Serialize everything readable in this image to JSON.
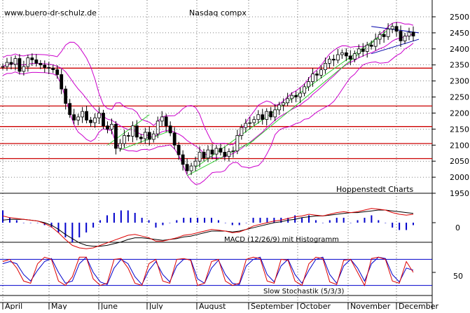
{
  "chart_data": {
    "type": "candlestick",
    "title": "Nasdaq compx",
    "watermark": "www.buero-dr-schulz.de",
    "source_label": "Hoppenstedt Charts",
    "price_axis": {
      "min": 1950,
      "max": 2500,
      "ticks": [
        1950,
        2000,
        2050,
        2100,
        2150,
        2200,
        2250,
        2300,
        2350,
        2400,
        2450,
        2500
      ]
    },
    "months": [
      "April",
      "May",
      "June",
      "July",
      "August",
      "September",
      "October",
      "November",
      "December"
    ],
    "horizontal_levels": [
      2340,
      2222,
      2158,
      2105,
      2058
    ],
    "close_series": [
      2345,
      2358,
      2352,
      2370,
      2330,
      2345,
      2372,
      2366,
      2355,
      2350,
      2342,
      2340,
      2335,
      2320,
      2275,
      2230,
      2195,
      2178,
      2188,
      2205,
      2178,
      2170,
      2185,
      2200,
      2160,
      2150,
      2165,
      2090,
      2105,
      2130,
      2128,
      2160,
      2125,
      2120,
      2140,
      2118,
      2135,
      2175,
      2188,
      2160,
      2138,
      2100,
      2070,
      2040,
      2020,
      2035,
      2050,
      2078,
      2060,
      2085,
      2072,
      2090,
      2078,
      2065,
      2080,
      2082,
      2130,
      2155,
      2168,
      2170,
      2180,
      2195,
      2180,
      2205,
      2188,
      2210,
      2225,
      2232,
      2245,
      2255,
      2250,
      2262,
      2282,
      2298,
      2322,
      2318,
      2335,
      2355,
      2368,
      2365,
      2382,
      2388,
      2378,
      2368,
      2385,
      2400,
      2392,
      2412,
      2408,
      2430,
      2445,
      2438,
      2462,
      2470,
      2455,
      2425,
      2440,
      2452,
      2440
    ],
    "macd": {
      "label": "MACD (12/26/9) mit Histogramm",
      "zero_tick": "0",
      "macd_line": [
        8,
        6,
        5,
        4,
        3,
        2,
        -1,
        -5,
        -12,
        -20,
        -27,
        -30,
        -31,
        -30,
        -27,
        -24,
        -21,
        -18,
        -15,
        -14,
        -16,
        -18,
        -22,
        -22,
        -20,
        -18,
        -15,
        -14,
        -12,
        -10,
        -8,
        -9,
        -10,
        -12,
        -11,
        -8,
        -4,
        -2,
        0,
        2,
        3,
        5,
        7,
        8,
        10,
        9,
        8,
        10,
        12,
        13,
        12,
        13,
        15,
        17,
        16,
        15,
        12,
        10,
        9,
        10
      ],
      "signal_line": [
        3,
        4,
        4,
        4,
        3,
        2,
        0,
        -3,
        -8,
        -14,
        -19,
        -24,
        -27,
        -28,
        -28,
        -27,
        -25,
        -23,
        -20,
        -18,
        -18,
        -19,
        -20,
        -21,
        -20,
        -19,
        -17,
        -16,
        -14,
        -12,
        -10,
        -10,
        -10,
        -11,
        -10,
        -8,
        -6,
        -4,
        -2,
        0,
        1,
        3,
        4,
        6,
        7,
        8,
        8,
        9,
        10,
        11,
        12,
        12,
        13,
        14,
        15,
        15,
        14,
        13,
        12,
        11
      ],
      "histogram": [
        5,
        2,
        1,
        0,
        0,
        0,
        -1,
        -2,
        -4,
        -6,
        -8,
        -6,
        -4,
        -2,
        1,
        3,
        4,
        5,
        5,
        4,
        2,
        1,
        -2,
        -1,
        0,
        1,
        2,
        2,
        2,
        2,
        2,
        1,
        0,
        -1,
        -1,
        0,
        2,
        2,
        2,
        2,
        2,
        2,
        3,
        2,
        3,
        1,
        0,
        1,
        2,
        2,
        0,
        1,
        2,
        3,
        1,
        0,
        -2,
        -3,
        -3,
        -1
      ]
    },
    "stochastic": {
      "label": "Slow Stochastik (5/3/3)",
      "tick": "50",
      "k_line": [
        75,
        80,
        60,
        30,
        25,
        70,
        85,
        80,
        30,
        20,
        40,
        85,
        85,
        35,
        20,
        25,
        80,
        82,
        60,
        25,
        20,
        70,
        80,
        30,
        25,
        80,
        82,
        78,
        20,
        25,
        75,
        80,
        30,
        20,
        25,
        80,
        85,
        82,
        30,
        25,
        80,
        78,
        30,
        20,
        70,
        85,
        82,
        28,
        22,
        78,
        80,
        50,
        20,
        82,
        85,
        80,
        30,
        25,
        75,
        50
      ],
      "d_line": [
        70,
        75,
        70,
        45,
        30,
        55,
        75,
        82,
        50,
        25,
        30,
        70,
        85,
        50,
        28,
        22,
        60,
        80,
        70,
        40,
        22,
        55,
        75,
        45,
        28,
        65,
        80,
        80,
        35,
        25,
        60,
        78,
        45,
        25,
        22,
        65,
        80,
        85,
        45,
        28,
        65,
        80,
        45,
        25,
        55,
        80,
        85,
        45,
        25,
        65,
        80,
        60,
        30,
        70,
        85,
        82,
        45,
        28,
        60,
        55
      ]
    }
  }
}
